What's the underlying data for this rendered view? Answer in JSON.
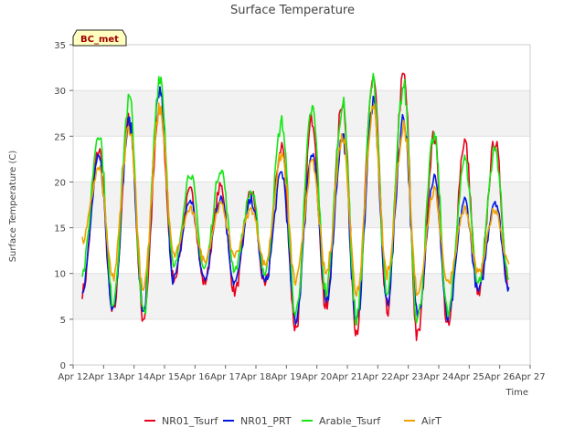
{
  "chart_data": {
    "type": "line",
    "title": "Surface Temperature",
    "xlabel": "Time",
    "ylabel": "Surface Temperature (C)",
    "ylim": [
      0,
      35
    ],
    "yticks": [
      0,
      5,
      10,
      15,
      20,
      25,
      30,
      35
    ],
    "xlim": [
      12,
      27
    ],
    "xticks": [
      12,
      13,
      14,
      15,
      16,
      17,
      18,
      19,
      20,
      21,
      22,
      23,
      24,
      25,
      26,
      27
    ],
    "xtick_labels": [
      "Apr 12",
      "Apr 13",
      "Apr 14",
      "Apr 15",
      "Apr 16",
      "Apr 17",
      "Apr 18",
      "Apr 19",
      "Apr 20",
      "Apr 21",
      "Apr 22",
      "Apr 23",
      "Apr 24",
      "Apr 25",
      "Apr 26",
      "Apr 27"
    ],
    "grid": true,
    "legend_position": "bottom",
    "badge": "BC_met",
    "x_unit": "day of April",
    "daily_extremes_x": [
      12.3,
      12.85,
      13.3,
      13.85,
      14.3,
      14.85,
      15.3,
      15.85,
      16.3,
      16.85,
      17.3,
      17.85,
      18.3,
      18.85,
      19.3,
      19.85,
      20.3,
      20.85,
      21.3,
      21.85,
      22.3,
      22.85,
      23.3,
      23.85,
      24.3,
      24.85,
      25.3,
      25.85,
      26.3
    ],
    "series": [
      {
        "name": "NR01_Tsurf",
        "color": "#e8001c",
        "values": [
          8,
          23.5,
          5.5,
          27,
          5.2,
          28,
          9.5,
          19,
          9,
          19.5,
          8,
          19,
          8.5,
          24,
          4,
          27,
          6,
          29,
          4,
          31.5,
          6,
          31.5,
          3,
          25,
          4,
          24.5,
          7.5,
          24.5,
          8.5
        ]
      },
      {
        "name": "NR01_PRT",
        "color": "#0018e0",
        "values": [
          8.5,
          22.5,
          6.5,
          26.5,
          6,
          30,
          9.5,
          18,
          9.5,
          18.5,
          9,
          18,
          9,
          21,
          5,
          23.5,
          7,
          25,
          4.5,
          28.5,
          7,
          27,
          5.5,
          20.5,
          5,
          18,
          8,
          18,
          8.5
        ]
      },
      {
        "name": "Arable_Tsurf",
        "color": "#14e614",
        "values": [
          10,
          25.5,
          7,
          29,
          5.5,
          31.7,
          10.5,
          21,
          10.5,
          21.5,
          10.5,
          19,
          10,
          26.5,
          5.5,
          28,
          8,
          28.5,
          5,
          31,
          7.5,
          30.5,
          5,
          25,
          5.5,
          22.5,
          9,
          23.5,
          9.5
        ]
      },
      {
        "name": "AirT",
        "color": "#f0a000",
        "values": [
          13.5,
          21.5,
          9.5,
          26,
          8.5,
          28,
          12,
          17,
          11.5,
          17.5,
          12,
          17,
          11,
          23,
          9,
          22,
          10,
          25,
          8,
          28,
          10,
          26,
          8,
          19,
          9,
          17,
          10,
          17,
          11
        ]
      }
    ]
  }
}
